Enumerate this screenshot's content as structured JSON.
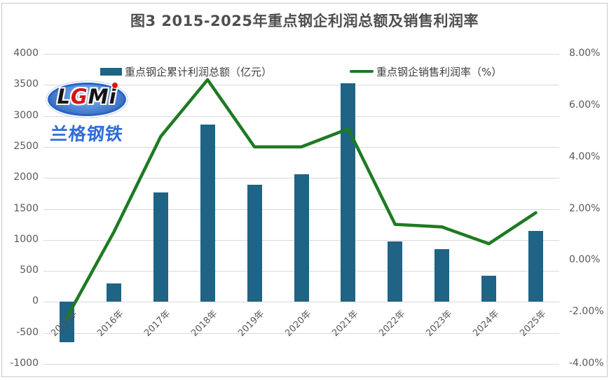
{
  "window": {
    "title": "图3 2015-2025年重点钢企利润总额及销售利润率"
  },
  "logo": {
    "caption": "兰格钢铁",
    "letters": [
      {
        "ch": "L",
        "color": "#151515"
      },
      {
        "ch": "G",
        "color": "#d41414"
      },
      {
        "ch": "M",
        "color": "#151515"
      },
      {
        "ch": "i",
        "color": "#151515"
      }
    ],
    "dot_color": "#e01313"
  },
  "chart_data": {
    "type": "bar",
    "title": "图3 2015-2025年重点钢企利润总额及销售利润率",
    "categories": [
      "2015年",
      "2016年",
      "2017年",
      "2018年",
      "2019年",
      "2020年",
      "2021年",
      "2022年",
      "2023年",
      "2024年",
      "2025年"
    ],
    "series": [
      {
        "name": "重点钢企累计利润总额（亿元）",
        "type": "bar",
        "axis": "left",
        "color": "#1f6385",
        "values": [
          -650,
          300,
          1770,
          2855,
          1890,
          2060,
          3525,
          975,
          850,
          425,
          1145
        ]
      },
      {
        "name": "重点钢企销售利润率（%）",
        "type": "line",
        "axis": "right",
        "color": "#1e7a23",
        "values": [
          -2.2,
          1.1,
          4.8,
          7.0,
          4.4,
          4.4,
          5.1,
          1.4,
          1.3,
          0.65,
          1.85
        ]
      }
    ],
    "left_axis": {
      "min": -1000,
      "max": 4000,
      "step": 500,
      "labels": [
        "4000",
        "3500",
        "3000",
        "2500",
        "2000",
        "1500",
        "1000",
        "500",
        "0",
        "-500",
        "-1000"
      ]
    },
    "right_axis": {
      "min": -4,
      "max": 8,
      "step": 2,
      "labels": [
        "8.00%",
        "6.00%",
        "4.00%",
        "2.00%",
        "0.00%",
        "-2.00%",
        "-4.00%"
      ]
    },
    "grid": true,
    "gridline_color": "#d9d9d9",
    "legend_position": "top"
  }
}
